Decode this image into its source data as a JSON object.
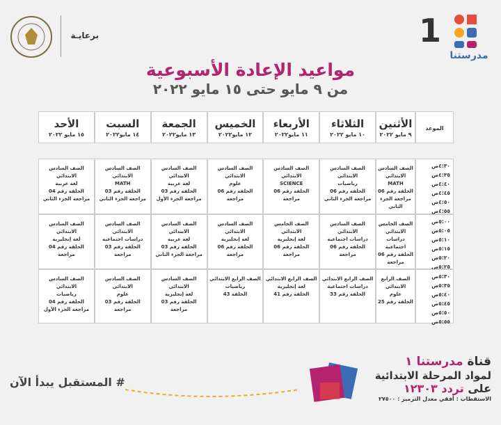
{
  "header": {
    "brand": "مدرستنا",
    "channel_number": "1",
    "sponsor": "برعايـة",
    "title": "مواعيد الإعادة الأسبوعية",
    "subtitle": "من ٩ مايو حتى ١٥ مايو ٢٠٢٢"
  },
  "table": {
    "time_header": "الموعد",
    "days": [
      {
        "name": "الأثنين",
        "date": "٩ مايو ٢٠٢٢"
      },
      {
        "name": "الثلاثاء",
        "date": "١٠ مايو ٢٠٢٢"
      },
      {
        "name": "الأربعاء",
        "date": "١١ مايو٢٠٢٢"
      },
      {
        "name": "الخميس",
        "date": "١٢ مايو٢٠٢٢"
      },
      {
        "name": "الجمعة",
        "date": "١٣ مايو٢٠٢٢"
      },
      {
        "name": "السبت",
        "date": "١٤ مايو٢٠٢٢"
      },
      {
        "name": "الأحد",
        "date": "١٥ مايو ٢٠٢٢"
      }
    ],
    "rows": [
      {
        "times": [
          "٤:٣٠ص",
          "٤:٣٥ص",
          "٤:٤٠ص",
          "٤:٤٥ص",
          "٤:٥٠ص",
          "٤:٥٥ص"
        ],
        "cells": [
          [
            "الصف السادس الابتدائي",
            "MATH",
            "الحلقة رقم 06 مراجعة الجزء الثاني"
          ],
          [
            "الصف السادس الابتدائي",
            "رياضيات",
            "الحلقة رقم 06 مراجعة الجزء الثاني"
          ],
          [
            "الصف السادس الابتدائي",
            "SCIENCE",
            "الحلقة رقم 06 مراجعة"
          ],
          [
            "الصف السادس الابتدائي",
            "علوم",
            "الحلقة رقم 06 مراجعة"
          ],
          [
            "الصف السادس الابتدائي",
            "لغة عربية",
            "الحلقة رقم 03 مراجعة الجزء الأول"
          ],
          [
            "الصف السادس الابتدائي",
            "MATH",
            "الحلقة رقم 03 مراجعة الجزء الثاني"
          ],
          [
            "الصف السادس الابتدائي",
            "لغة عربية",
            "الحلقة رقم 04 مراجعة الجزء الثاني"
          ]
        ]
      },
      {
        "times": [
          "٥:٠٠ص",
          "٥:٠٥ص",
          "٥:١٠ص",
          "٥:١٥ص",
          "٥:٢٠ص",
          "٥:٢٥ص"
        ],
        "cells": [
          [
            "الصف الخامس الابتدائي",
            "دراسات اجتماعية",
            "الحلقة رقم 06 مراجعة"
          ],
          [
            "الصف السادس الابتدائي",
            "دراسات اجتماعية",
            "الحلقة رقم 06 مراجعة"
          ],
          [
            "الصف الخامس الابتدائي",
            "لغة إنجليزية",
            "الحلقة رقم 06 مراجعة"
          ],
          [
            "الصف السادس الابتدائي",
            "لغة إنجليزية",
            "الحلقة رقم 06 مراجعة"
          ],
          [
            "الصف السادس الابتدائي",
            "لغة عربية",
            "الحلقة رقم 03 مراجعة الجزء الثاني"
          ],
          [
            "الصف السادس الابتدائي",
            "دراسات اجتماعية",
            "الحلقة رقم 03 مراجعة"
          ],
          [
            "الصف السادس الابتدائي",
            "لغة إنجليزية",
            "الحلقة رقم 04 مراجعة"
          ]
        ]
      },
      {
        "times": [
          "٥:٣٠ص",
          "٥:٣٥ص",
          "٥:٤٠ص",
          "٥:٤٥ص",
          "٥:٥٠ص",
          "٥:٥٥ص"
        ],
        "cells": [
          [
            "الصف الرابع الابتدائي",
            "علوم",
            "الحلقة رقم 25"
          ],
          [
            "الصف الرابع الابتدائي",
            "دراسات اجتماعية",
            "الحلقة رقم 33"
          ],
          [
            "الصف الرابع الابتدائي",
            "لغة إنجليزية",
            "الحلقة رقم 41"
          ],
          [
            "الصف الرابع الابتدائي",
            "رياضيات",
            "الحلقة 43"
          ],
          [
            "الصف السادس الابتدائي",
            "لغة إنجليزية",
            "الحلقة رقم 03 مراجعة"
          ],
          [
            "الصف السادس الابتدائي",
            "علوم",
            "الحلقة رقم 03 مراجعة"
          ],
          [
            "الصف السادس الابتدائي",
            "رياضيات",
            "الحلقة رقم 04 مراجعة الجزء الأول"
          ]
        ]
      }
    ]
  },
  "footer": {
    "channel_label": "قناة",
    "channel_name": "مدرستنا ١",
    "line2": "لمواد المرحلة الابتدائية",
    "freq_label": "على",
    "freq_value": "تردد ١٢٣٠٣",
    "specs": "الاستقطاب : أفقي معدل الترميز : ٢٧٥٠٠",
    "hashtag": "# المستقبل يبدأ الآن"
  }
}
